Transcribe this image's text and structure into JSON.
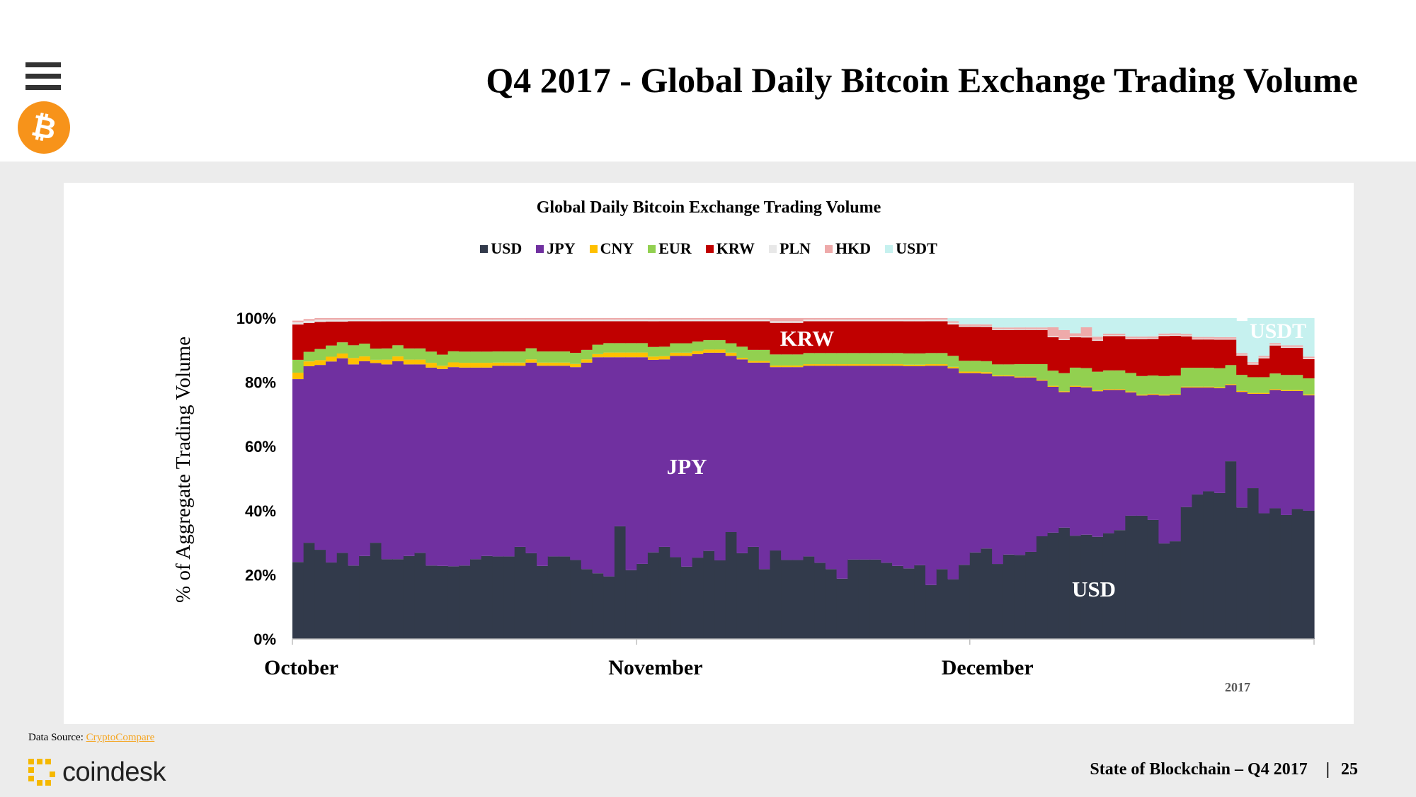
{
  "header": {
    "title": "Q4 2017  - Global Daily Bitcoin Exchange Trading Volume",
    "menu_icon": "hamburger-menu-icon",
    "logo_icon": "bitcoin-logo-icon",
    "logo_symbol": "₿"
  },
  "chart_data": {
    "type": "area",
    "stacked": true,
    "percent": true,
    "title": "Global Daily Bitcoin Exchange Trading Volume",
    "ylabel": "% of Aggregate Trading Volume",
    "xlabel": "2017",
    "ylim": [
      0,
      100
    ],
    "yticks": [
      "0%",
      "20%",
      "40%",
      "60%",
      "80%",
      "100%"
    ],
    "xticks": [
      "October",
      "November",
      "December"
    ],
    "n_days": 92,
    "annotations": [
      "USDT",
      "KRW",
      "JPY",
      "USD"
    ],
    "series": [
      {
        "name": "USD",
        "color": "#323a4b",
        "values": [
          24,
          30,
          28,
          24,
          27,
          23,
          26,
          30,
          25,
          25,
          26,
          27,
          23,
          23,
          23,
          23,
          25,
          26,
          26,
          26,
          29,
          27,
          23,
          26,
          26,
          25,
          22,
          21,
          20,
          36,
          22,
          24,
          27,
          29,
          26,
          23,
          26,
          28,
          25,
          34,
          27,
          29,
          22,
          28,
          25,
          25,
          26,
          24,
          22,
          19,
          25,
          25,
          25,
          24,
          23,
          22,
          23,
          17,
          22,
          19,
          24,
          28,
          29,
          24,
          27,
          27,
          28,
          33,
          35,
          37,
          34,
          34,
          33,
          34,
          35,
          40,
          40,
          39,
          31,
          32,
          42,
          46,
          47,
          46,
          56,
          41,
          48,
          40,
          42,
          41,
          43,
          40
        ]
      },
      {
        "name": "JPY",
        "color": "#7030a0",
        "values": [
          57,
          55,
          58,
          63,
          61,
          63,
          61,
          56,
          61,
          62,
          60,
          59,
          62,
          62,
          63,
          62,
          60,
          59,
          60,
          60,
          57,
          60,
          63,
          60,
          60,
          61,
          65,
          69,
          70,
          54,
          68,
          66,
          60,
          59,
          64,
          67,
          65,
          63,
          66,
          56,
          61,
          58,
          65,
          58,
          61,
          61,
          60,
          62,
          64,
          67,
          61,
          61,
          61,
          62,
          63,
          63,
          62,
          69,
          64,
          67,
          62,
          58,
          56,
          60,
          57,
          57,
          56,
          50,
          48,
          45,
          49,
          48,
          47,
          46,
          45,
          40,
          39,
          41,
          48,
          48,
          38,
          34,
          33,
          33,
          24,
          36,
          30,
          38,
          38,
          41,
          39,
          36
        ]
      },
      {
        "name": "CNY",
        "color": "#ffc000",
        "values": [
          2,
          1.5,
          1.5,
          1.5,
          1.5,
          2,
          1.5,
          1,
          1.5,
          1.5,
          1.5,
          1.5,
          1.5,
          1,
          1.5,
          1.5,
          1.5,
          1.5,
          1,
          1,
          1,
          1,
          1,
          1,
          1,
          1,
          1,
          1,
          1.5,
          1.5,
          1.5,
          1.5,
          1,
          1,
          1,
          1,
          1,
          1,
          1,
          1,
          0.5,
          0.5,
          0.5,
          0.5,
          0.5,
          0.5,
          0.5,
          0.5,
          0.5,
          0.5,
          0.5,
          0.5,
          0.5,
          0.5,
          0.5,
          0.5,
          0.5,
          0.5,
          0.5,
          0.5,
          0.5,
          0.5,
          0.5,
          0.3,
          0.3,
          0.3,
          0.3,
          0.3,
          0.3,
          0.3,
          0.3,
          0.3,
          0.3,
          0.3,
          0.3,
          0.3,
          0.3,
          0.3,
          0.3,
          0.3,
          0.3,
          0.3,
          0.3,
          0.3,
          0.3,
          0.3,
          0.3,
          0.3,
          0.3,
          0.3,
          0.3,
          0.3
        ]
      },
      {
        "name": "EUR",
        "color": "#92d050",
        "values": [
          4,
          3,
          3.5,
          3.5,
          3.5,
          4,
          4,
          3.5,
          3.5,
          3.5,
          3.5,
          3.5,
          3.5,
          3.5,
          3.5,
          3.5,
          3.5,
          3.5,
          3.5,
          3.5,
          3.5,
          3.5,
          3.5,
          3.5,
          3.5,
          3.5,
          3,
          3,
          3,
          3,
          3,
          3,
          3,
          3,
          3,
          3,
          3,
          3,
          3,
          3,
          3.5,
          3.5,
          3.5,
          3.5,
          3.5,
          3.5,
          3.5,
          3.5,
          3.5,
          3.5,
          3.5,
          3.5,
          3.5,
          3.5,
          3.5,
          3.5,
          3.5,
          3.5,
          3.5,
          3.5,
          3.5,
          3.5,
          3.5,
          3.5,
          3.5,
          4,
          4,
          5,
          5,
          6,
          6,
          6,
          6,
          6,
          6,
          6,
          6,
          6,
          6,
          6,
          6,
          6,
          6,
          6,
          6,
          5,
          5,
          5,
          5,
          5,
          5,
          5
        ]
      },
      {
        "name": "KRW",
        "color": "#c00000",
        "values": [
          11,
          9,
          8.5,
          7.5,
          6.5,
          7.5,
          7,
          8.5,
          8.5,
          7.5,
          8.5,
          8.5,
          9.5,
          10.5,
          9.5,
          9.5,
          9.5,
          9.5,
          9.5,
          9.5,
          9.5,
          8.5,
          9.5,
          9.5,
          9.5,
          10,
          9,
          7.5,
          7,
          7,
          7,
          7,
          8,
          8,
          7,
          7,
          6.5,
          6,
          6,
          7,
          8,
          9,
          9,
          10,
          10,
          10,
          10,
          10,
          10,
          10,
          10,
          10,
          10,
          10,
          10,
          10,
          10,
          10,
          10,
          10,
          11,
          11,
          11,
          11,
          11,
          11,
          11,
          11,
          11,
          11,
          10,
          10,
          10,
          11,
          11,
          11,
          12,
          12,
          13,
          13,
          10,
          9,
          9,
          9,
          8,
          6,
          4,
          6,
          9,
          9,
          9,
          6
        ]
      },
      {
        "name": "PLN",
        "color": "#e8e8e8",
        "values": [
          0.7,
          0.7,
          0.7,
          0.6,
          0.6,
          0.5,
          0.5,
          0.5,
          0.5,
          0.5,
          0.5,
          0.5,
          0.5,
          0.5,
          0.5,
          0.5,
          0.5,
          0.5,
          0.5,
          0.5,
          0.5,
          0.5,
          0.5,
          0.5,
          0.5,
          0.5,
          0.5,
          0.5,
          0.5,
          0.5,
          0.5,
          0.5,
          0.5,
          0.5,
          0.5,
          0.5,
          0.5,
          0.5,
          0.5,
          0.5,
          0.5,
          0.5,
          0.5,
          0.5,
          0.5,
          0.5,
          0.5,
          0.5,
          0.5,
          0.5,
          0.5,
          0.5,
          0.5,
          0.5,
          0.5,
          0.5,
          0.5,
          0.5,
          0.5,
          0.5,
          0.3,
          0.3,
          0.3,
          0.3,
          0.3,
          0.3,
          0.3,
          0.3,
          0.3,
          0.3,
          0.3,
          0.3,
          0.3,
          0.3,
          0.3,
          0.3,
          0.3,
          0.3,
          0.3,
          0.3,
          0.3,
          0.3,
          0.3,
          0.3,
          0.3,
          0.3,
          0.3,
          0.3,
          0.3,
          0.3,
          0.3,
          0.3
        ]
      },
      {
        "name": "HKD",
        "color": "#eeaaaa",
        "values": [
          0.5,
          0.5,
          0.5,
          0.5,
          0.5,
          0.5,
          0.5,
          0.5,
          0.5,
          0.5,
          0.5,
          0.5,
          0.5,
          0.5,
          0.5,
          0.5,
          0.5,
          0.5,
          0.5,
          0.5,
          0.5,
          0.5,
          0.5,
          0.5,
          0.5,
          0.5,
          0.5,
          0.5,
          0.5,
          0.5,
          0.5,
          0.5,
          0.5,
          0.5,
          0.5,
          0.5,
          0.5,
          0.5,
          0.5,
          0.5,
          0.5,
          0.5,
          0.5,
          1,
          1,
          1,
          0.5,
          0.5,
          0.5,
          0.5,
          0.5,
          0.5,
          0.5,
          0.5,
          0.5,
          0.5,
          0.5,
          0.5,
          0.5,
          0.5,
          0.5,
          0.5,
          0.5,
          0.5,
          0.5,
          0.5,
          0.5,
          0.5,
          3,
          3,
          1,
          3,
          1,
          0.5,
          0.5,
          0.5,
          0.5,
          0.5,
          0.5,
          0.5,
          0.5,
          0.5,
          0.5,
          0.5,
          0.5,
          0.5,
          0.5,
          0.5,
          0.5,
          0.5,
          0.5,
          0.5
        ]
      },
      {
        "name": "USDT",
        "color": "#c6f1ef",
        "values": [
          0,
          0,
          0,
          0,
          0,
          0,
          0,
          0,
          0,
          0,
          0,
          0,
          0,
          0,
          0,
          0,
          0,
          0,
          0,
          0,
          0,
          0,
          0,
          0,
          0,
          0,
          0,
          0,
          0,
          0,
          0,
          0,
          0,
          0,
          0,
          0,
          0,
          0,
          0,
          0,
          0,
          0,
          0,
          0,
          0,
          0,
          0,
          0,
          0,
          0,
          0,
          0,
          0,
          0,
          0,
          0,
          0,
          0,
          0,
          1,
          2,
          2,
          2,
          3,
          3,
          3,
          3,
          3,
          3,
          4,
          5,
          3,
          6,
          5,
          5,
          6,
          6,
          6,
          5,
          5,
          5,
          6,
          6,
          6,
          6,
          10,
          14,
          12,
          8,
          9,
          9,
          12
        ]
      }
    ]
  },
  "footer": {
    "source_label": "Data Source: ",
    "source_link": "CryptoCompare",
    "brand": "coindesk",
    "report": "State of Blockchain – Q4 2017",
    "separator": "|",
    "page_number": "25"
  }
}
